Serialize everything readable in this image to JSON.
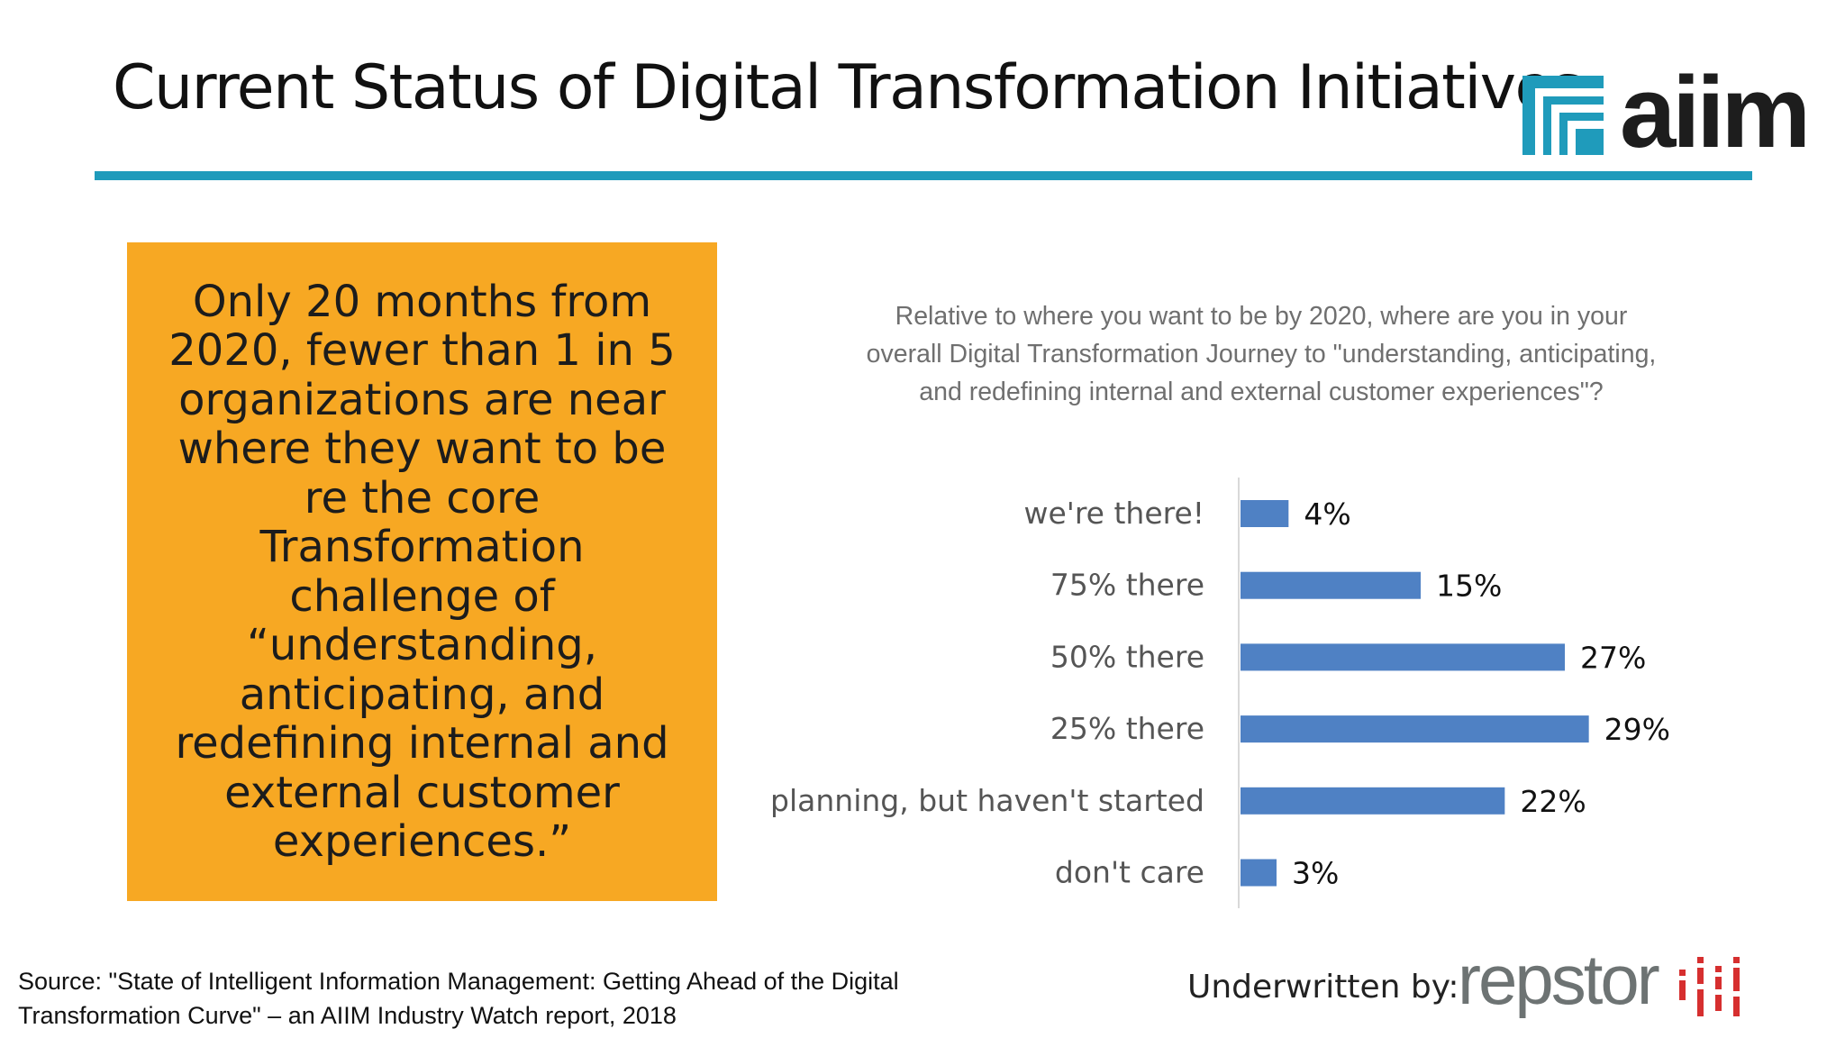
{
  "slide": {
    "title": "Current Status of Digital Transformation Initiatives",
    "accent_color": "#1f9bbb",
    "logo_top": {
      "text": "aiim",
      "icon": "aiim-logo-icon",
      "color": "#1f9bbb"
    }
  },
  "callout": {
    "text": "Only 20 months from 2020, fewer than 1 in 5 organizations are near where they want to be re the core Transformation challenge of “understanding, anticipating, and redefining internal and external customer experiences.”",
    "background": "#f7a823"
  },
  "chart_data": {
    "type": "bar",
    "orientation": "horizontal",
    "title": "Relative to where you want to be by 2020, where are you in your overall Digital Transformation Journey to \"understanding, anticipating, and redefining internal and external customer experiences\"?",
    "categories": [
      "we're there!",
      "75% there",
      "50% there",
      "25% there",
      "planning, but haven't started",
      "don't care"
    ],
    "values": [
      4,
      15,
      27,
      29,
      22,
      3
    ],
    "value_labels": [
      "4%",
      "15%",
      "27%",
      "29%",
      "22%",
      "3%"
    ],
    "unit": "%",
    "xlim": [
      0,
      30
    ],
    "bar_color": "#4f81c4",
    "grid": false,
    "legend": "none"
  },
  "footer": {
    "source": "Source: \"State of Intelligent Information Management: Getting Ahead of the Digital Transformation Curve\" – an AIIM Industry Watch report, 2018",
    "underwritten_label": "Underwritten by:",
    "sponsor_logo": {
      "text": "repstor",
      "icon": "repstor-dots-icon",
      "accent": "#d62f2f"
    }
  }
}
